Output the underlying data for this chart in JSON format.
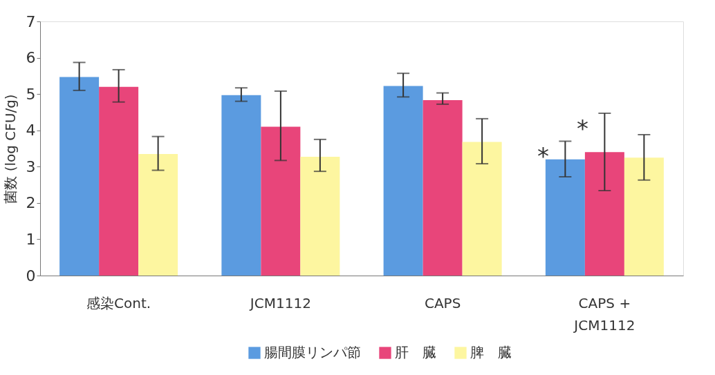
{
  "chart_data": {
    "type": "bar",
    "ylabel": "菌数 (log CFU/g)",
    "categories": [
      "感染Cont.",
      "JCM1112",
      "CAPS",
      "CAPS +\nJCM1112"
    ],
    "series": [
      {
        "name": "腸間膜リンパ節",
        "color": "#5b9be0",
        "values": [
          5.47,
          4.97,
          5.22,
          3.2
        ],
        "errors": [
          [
            5.1,
            5.87
          ],
          [
            4.8,
            5.17
          ],
          [
            4.92,
            5.57
          ],
          [
            2.72,
            3.7
          ]
        ]
      },
      {
        "name": "肝　臓",
        "color": "#e8457a",
        "values": [
          5.2,
          4.1,
          4.83,
          3.4
        ],
        "errors": [
          [
            4.78,
            5.67
          ],
          [
            3.17,
            5.08
          ],
          [
            4.72,
            5.03
          ],
          [
            2.34,
            4.47
          ]
        ]
      },
      {
        "name": "脾　臓",
        "color": "#fdf6a0",
        "values": [
          3.35,
          3.27,
          3.68,
          3.25
        ],
        "errors": [
          [
            2.9,
            3.83
          ],
          [
            2.87,
            3.75
          ],
          [
            3.08,
            4.32
          ],
          [
            2.63,
            3.88
          ]
        ]
      }
    ],
    "annotations": [
      {
        "text": "*",
        "x": "CAPS +\nJCM1112",
        "y": 3.45
      },
      {
        "text": "*",
        "x": "CAPS +\nJCM1112",
        "y": 4.2
      }
    ],
    "ylim": [
      0,
      7
    ],
    "yticks": [
      0,
      1,
      2,
      3,
      4,
      5,
      6,
      7
    ],
    "grid": false,
    "legend": "bottom"
  }
}
